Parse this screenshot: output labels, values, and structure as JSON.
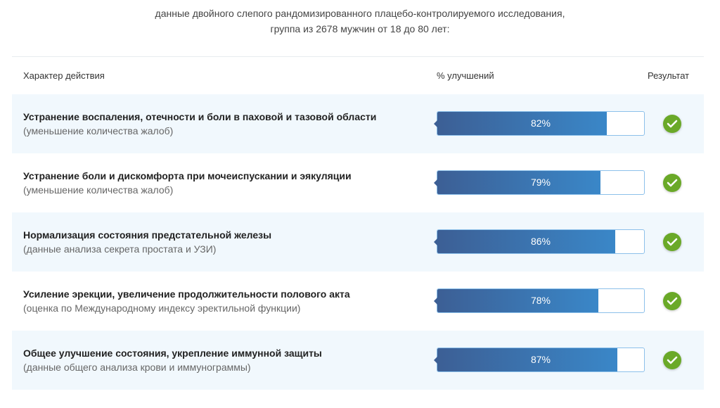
{
  "intro": {
    "line1": "данные двойного слепого рандомизированного плацебо-контролируемого исследования,",
    "line2": "группа из 2678 мужчин от 18 до 80 лет:"
  },
  "headers": {
    "action": "Характер действия",
    "improvement": "% улучшений",
    "result": "Результат"
  },
  "rows": [
    {
      "title": "Устранение воспаления, отечности и боли в паховой и тазовой области",
      "sub": "(уменьшение количества жалоб)",
      "pct": 82,
      "label": "82%"
    },
    {
      "title": "Устранение боли и дискомфорта при мочеиспускании и эякуляции",
      "sub": "(уменьшение количества жалоб)",
      "pct": 79,
      "label": "79%"
    },
    {
      "title": "Нормализация состояния предстательной железы",
      "sub": "(данные анализа секрета простата и УЗИ)",
      "pct": 86,
      "label": "86%"
    },
    {
      "title": "Усиление эрекции, увеличение продолжительности полового акта",
      "sub": "(оценка по Международному индексу эректильной функции)",
      "pct": 78,
      "label": "78%"
    },
    {
      "title": "Общее улучшение состояния, укрепление иммунной защиты",
      "sub": "(данные общего анализа крови и иммунограммы)",
      "pct": 87,
      "label": "87%"
    }
  ],
  "colors": {
    "accent": "#3a87c8",
    "check": "#6aa928",
    "row_alt": "#f1f8fd"
  }
}
